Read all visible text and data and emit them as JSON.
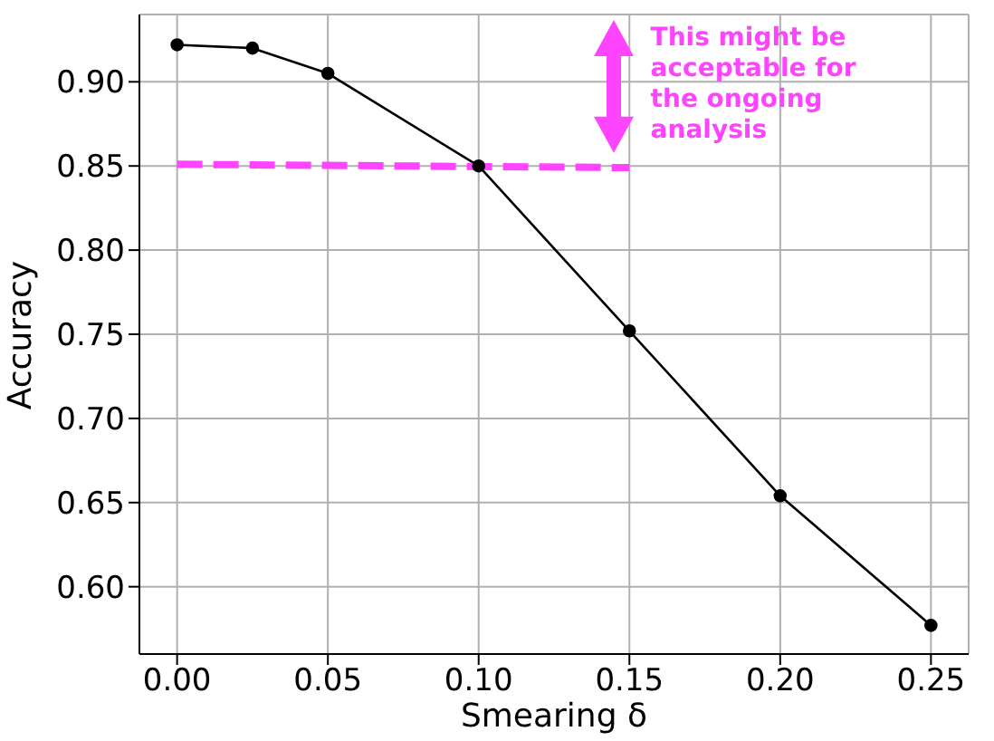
{
  "chart_data": {
    "type": "line",
    "xlabel": "Smearing δ",
    "ylabel": "Accuracy",
    "xlim": [
      -0.0125,
      0.2625
    ],
    "ylim": [
      0.56,
      0.94
    ],
    "xticks": [
      {
        "value": 0,
        "label": "0.00"
      },
      {
        "value": 0.05,
        "label": "0.05"
      },
      {
        "value": 0.1,
        "label": "0.10"
      },
      {
        "value": 0.15,
        "label": "0.15"
      },
      {
        "value": 0.2,
        "label": "0.20"
      },
      {
        "value": 0.25,
        "label": "0.25"
      }
    ],
    "yticks": [
      {
        "value": 0.6,
        "label": "0.60"
      },
      {
        "value": 0.65,
        "label": "0.65"
      },
      {
        "value": 0.7,
        "label": "0.70"
      },
      {
        "value": 0.75,
        "label": "0.75"
      },
      {
        "value": 0.8,
        "label": "0.80"
      },
      {
        "value": 0.85,
        "label": "0.85"
      },
      {
        "value": 0.9,
        "label": "0.90"
      }
    ],
    "grid": true,
    "series": [
      {
        "color": "#000000",
        "marker": "circle",
        "line_style": "solid",
        "x": [
          0,
          0.025,
          0.05,
          0.1,
          0.15,
          0.2,
          0.25
        ],
        "values": [
          0.922,
          0.92,
          0.905,
          0.85,
          0.752,
          0.654,
          0.577
        ]
      },
      {
        "color": "#ff44ff",
        "marker": "none",
        "line_style": "dashed",
        "x": [
          0,
          0.15
        ],
        "values": [
          0.851,
          0.849
        ]
      }
    ],
    "annotations": [
      "This might be acceptable for the ongoing analysis"
    ]
  }
}
